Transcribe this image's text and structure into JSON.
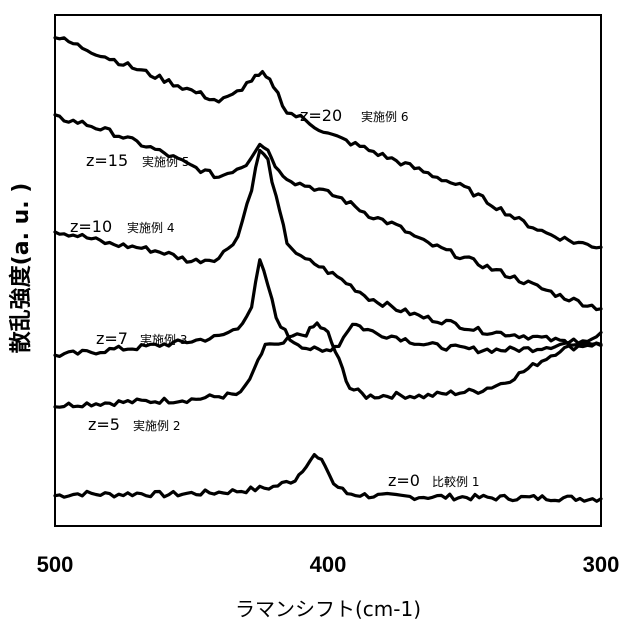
{
  "chart_data": {
    "type": "line",
    "xlabel": "ラマンシフト(cm-1)",
    "ylabel": "散乱強度(a. u. )",
    "xlim": [
      500,
      300
    ],
    "x_ticks": [
      "500",
      "400",
      "300"
    ],
    "y_ticks_shown": false,
    "grid": false,
    "legend": "none",
    "series": [
      {
        "name": "z=0 比較例 1",
        "label_z": "z=0",
        "label_ex": "比較例 1",
        "points": [
          [
            500,
            0.05
          ],
          [
            490,
            0.07
          ],
          [
            480,
            0.06
          ],
          [
            470,
            0.07
          ],
          [
            460,
            0.06
          ],
          [
            450,
            0.07
          ],
          [
            440,
            0.08
          ],
          [
            430,
            0.1
          ],
          [
            420,
            0.13
          ],
          [
            412,
            0.2
          ],
          [
            408,
            0.34
          ],
          [
            405,
            0.42
          ],
          [
            401,
            0.33
          ],
          [
            398,
            0.16
          ],
          [
            393,
            0.07
          ],
          [
            385,
            0.05
          ],
          [
            375,
            0.04
          ],
          [
            360,
            0.04
          ],
          [
            340,
            0.03
          ],
          [
            320,
            0.03
          ],
          [
            300,
            0.02
          ]
        ]
      },
      {
        "name": "z=5 実施例 2",
        "label_z": "z=5",
        "label_ex": "実施例 2",
        "points": [
          [
            500,
            0.88
          ],
          [
            490,
            0.9
          ],
          [
            480,
            0.91
          ],
          [
            470,
            0.92
          ],
          [
            460,
            0.93
          ],
          [
            450,
            0.94
          ],
          [
            440,
            0.97
          ],
          [
            432,
            0.99
          ],
          [
            427,
            1.2
          ],
          [
            423,
            1.45
          ],
          [
            418,
            1.43
          ],
          [
            413,
            1.52
          ],
          [
            408,
            1.55
          ],
          [
            404,
            1.64
          ],
          [
            400,
            1.55
          ],
          [
            396,
            1.3
          ],
          [
            392,
            1.05
          ],
          [
            386,
            0.97
          ],
          [
            375,
            0.98
          ],
          [
            365,
            0.97
          ],
          [
            355,
            1.0
          ],
          [
            345,
            1.02
          ],
          [
            335,
            1.1
          ],
          [
            325,
            1.25
          ],
          [
            315,
            1.4
          ],
          [
            305,
            1.45
          ],
          [
            300,
            1.45
          ]
        ]
      },
      {
        "name": "z=7 実施例 3",
        "label_z": "z=7",
        "label_ex": "実施例 3",
        "points": [
          [
            500,
            1.35
          ],
          [
            490,
            1.37
          ],
          [
            480,
            1.4
          ],
          [
            470,
            1.42
          ],
          [
            460,
            1.45
          ],
          [
            450,
            1.48
          ],
          [
            440,
            1.52
          ],
          [
            433,
            1.6
          ],
          [
            428,
            1.8
          ],
          [
            425,
            2.22
          ],
          [
            422,
            2.0
          ],
          [
            419,
            1.7
          ],
          [
            414,
            1.5
          ],
          [
            408,
            1.42
          ],
          [
            402,
            1.38
          ],
          [
            396,
            1.45
          ],
          [
            391,
            1.65
          ],
          [
            387,
            1.6
          ],
          [
            382,
            1.55
          ],
          [
            375,
            1.52
          ],
          [
            365,
            1.45
          ],
          [
            355,
            1.42
          ],
          [
            345,
            1.4
          ],
          [
            335,
            1.4
          ],
          [
            325,
            1.41
          ],
          [
            315,
            1.45
          ],
          [
            305,
            1.5
          ],
          [
            300,
            1.56
          ]
        ]
      },
      {
        "name": "z=10 実施例 4",
        "label_z": "z=10",
        "label_ex": "実施例 4",
        "points": [
          [
            500,
            2.5
          ],
          [
            490,
            2.45
          ],
          [
            480,
            2.38
          ],
          [
            470,
            2.35
          ],
          [
            460,
            2.3
          ],
          [
            450,
            2.22
          ],
          [
            440,
            2.25
          ],
          [
            433,
            2.45
          ],
          [
            428,
            2.9
          ],
          [
            425,
            3.25
          ],
          [
            422,
            3.15
          ],
          [
            419,
            2.8
          ],
          [
            415,
            2.4
          ],
          [
            410,
            2.25
          ],
          [
            405,
            2.2
          ],
          [
            395,
            2.05
          ],
          [
            385,
            1.88
          ],
          [
            375,
            1.78
          ],
          [
            365,
            1.7
          ],
          [
            355,
            1.65
          ],
          [
            345,
            1.58
          ],
          [
            335,
            1.55
          ],
          [
            325,
            1.52
          ],
          [
            315,
            1.48
          ],
          [
            305,
            1.45
          ],
          [
            300,
            1.44
          ]
        ]
      },
      {
        "name": "z=15 実施例 5",
        "label_z": "z=15",
        "label_ex": "実施例 5",
        "points": [
          [
            500,
            3.55
          ],
          [
            490,
            3.5
          ],
          [
            480,
            3.42
          ],
          [
            470,
            3.32
          ],
          [
            460,
            3.22
          ],
          [
            450,
            3.1
          ],
          [
            440,
            3.0
          ],
          [
            430,
            3.12
          ],
          [
            425,
            3.32
          ],
          [
            422,
            3.25
          ],
          [
            418,
            3.05
          ],
          [
            412,
            2.95
          ],
          [
            405,
            2.9
          ],
          [
            395,
            2.8
          ],
          [
            385,
            2.65
          ],
          [
            375,
            2.55
          ],
          [
            365,
            2.4
          ],
          [
            355,
            2.3
          ],
          [
            345,
            2.2
          ],
          [
            335,
            2.1
          ],
          [
            325,
            2.0
          ],
          [
            315,
            1.9
          ],
          [
            305,
            1.82
          ],
          [
            300,
            1.78
          ]
        ]
      },
      {
        "name": "z=20 実施例 6",
        "label_z": "z=20",
        "label_ex": "実施例 6",
        "points": [
          [
            500,
            4.3
          ],
          [
            490,
            4.2
          ],
          [
            480,
            4.1
          ],
          [
            470,
            4.0
          ],
          [
            460,
            3.9
          ],
          [
            450,
            3.8
          ],
          [
            440,
            3.7
          ],
          [
            435,
            3.75
          ],
          [
            428,
            3.9
          ],
          [
            424,
            3.95
          ],
          [
            420,
            3.85
          ],
          [
            415,
            3.6
          ],
          [
            410,
            3.55
          ],
          [
            400,
            3.4
          ],
          [
            390,
            3.3
          ],
          [
            380,
            3.2
          ],
          [
            370,
            3.1
          ],
          [
            360,
            3.0
          ],
          [
            350,
            2.9
          ],
          [
            340,
            2.75
          ],
          [
            330,
            2.6
          ],
          [
            320,
            2.48
          ],
          [
            310,
            2.4
          ],
          [
            300,
            2.35
          ]
        ]
      }
    ]
  }
}
